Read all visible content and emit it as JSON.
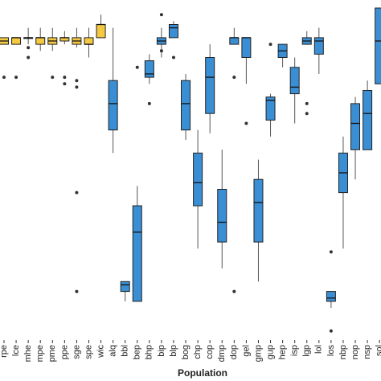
{
  "chart_data": {
    "type": "box",
    "x_label": "Population",
    "categories": [
      "rpe",
      "lce",
      "mhe",
      "mpe",
      "pme",
      "ppe",
      "sge",
      "spe",
      "wic",
      "alq",
      "bbl",
      "bep",
      "bhp",
      "bip",
      "blp",
      "bog",
      "chp",
      "cop",
      "dmp",
      "dop",
      "gel",
      "gmp",
      "gup",
      "hep",
      "isp",
      "lgp",
      "lol",
      "los",
      "nbp",
      "nop",
      "nsp",
      "sol"
    ],
    "colors": [
      "#f5c842",
      "#f5c842",
      "#f5c842",
      "#f5c842",
      "#f5c842",
      "#f5c842",
      "#f5c842",
      "#f5c842",
      "#f5c842",
      "#3a8fd4",
      "#3a8fd4",
      "#3a8fd4",
      "#3a8fd4",
      "#3a8fd4",
      "#3a8fd4",
      "#3a8fd4",
      "#3a8fd4",
      "#3a8fd4",
      "#3a8fd4",
      "#3a8fd4",
      "#3a8fd4",
      "#3a8fd4",
      "#3a8fd4",
      "#3a8fd4",
      "#3a8fd4",
      "#3a8fd4",
      "#3a8fd4",
      "#3a8fd4",
      "#3a8fd4",
      "#3a8fd4",
      "#3a8fd4",
      "#3a8fd4"
    ],
    "ylim": [
      0,
      100
    ],
    "boxes": [
      {
        "min": 89,
        "q1": 89,
        "median": 90,
        "q3": 91,
        "max": 91,
        "outliers": [
          79
        ]
      },
      {
        "min": 89,
        "q1": 89,
        "median": 91,
        "q3": 91,
        "max": 91,
        "outliers": [
          79
        ]
      },
      {
        "min": 89,
        "q1": 91,
        "median": 91,
        "q3": 91,
        "max": 94,
        "outliers": [
          88,
          85
        ]
      },
      {
        "min": 87,
        "q1": 89,
        "median": 91,
        "q3": 91,
        "max": 94,
        "outliers": []
      },
      {
        "min": 87,
        "q1": 89,
        "median": 90,
        "q3": 91,
        "max": 94,
        "outliers": [
          79
        ]
      },
      {
        "min": 89,
        "q1": 90,
        "median": 91,
        "q3": 91,
        "max": 93,
        "outliers": [
          79,
          77
        ]
      },
      {
        "min": 88,
        "q1": 89,
        "median": 90,
        "q3": 91,
        "max": 94,
        "outliers": [
          78,
          76,
          44,
          14
        ]
      },
      {
        "min": 85,
        "q1": 89,
        "median": 89,
        "q3": 91,
        "max": 94,
        "outliers": []
      },
      {
        "min": 91,
        "q1": 91,
        "median": 95,
        "q3": 95,
        "max": 98,
        "outliers": []
      },
      {
        "min": 56,
        "q1": 63,
        "median": 71,
        "q3": 78,
        "max": 94,
        "outliers": []
      },
      {
        "min": 11,
        "q1": 14,
        "median": 16,
        "q3": 17,
        "max": 17,
        "outliers": []
      },
      {
        "min": 11,
        "q1": 11,
        "median": 32,
        "q3": 40,
        "max": 46,
        "outliers": [
          82
        ]
      },
      {
        "min": 77,
        "q1": 79,
        "median": 80,
        "q3": 84,
        "max": 86,
        "outliers": [
          71
        ]
      },
      {
        "min": 85,
        "q1": 89,
        "median": 90,
        "q3": 91,
        "max": 94,
        "outliers": [
          98,
          87
        ]
      },
      {
        "min": 91,
        "q1": 91,
        "median": 94,
        "q3": 95,
        "max": 96,
        "outliers": [
          85
        ]
      },
      {
        "min": 60,
        "q1": 63,
        "median": 71,
        "q3": 78,
        "max": 80,
        "outliers": []
      },
      {
        "min": 27,
        "q1": 40,
        "median": 47,
        "q3": 56,
        "max": 63,
        "outliers": []
      },
      {
        "min": 62,
        "q1": 68,
        "median": 79,
        "q3": 85,
        "max": 89,
        "outliers": []
      },
      {
        "min": 21,
        "q1": 29,
        "median": 35,
        "q3": 45,
        "max": 57,
        "outliers": []
      },
      {
        "min": 89,
        "q1": 89,
        "median": 91,
        "q3": 91,
        "max": 94,
        "outliers": [
          79,
          14
        ]
      },
      {
        "min": 77,
        "q1": 85,
        "median": 91,
        "q3": 91,
        "max": 91,
        "outliers": [
          65
        ]
      },
      {
        "min": 17,
        "q1": 29,
        "median": 41,
        "q3": 48,
        "max": 54,
        "outliers": []
      },
      {
        "min": 61,
        "q1": 66,
        "median": 72,
        "q3": 73,
        "max": 74,
        "outliers": [
          89
        ]
      },
      {
        "min": 82,
        "q1": 85,
        "median": 87,
        "q3": 89,
        "max": 89,
        "outliers": []
      },
      {
        "min": 65,
        "q1": 74,
        "median": 76,
        "q3": 82,
        "max": 85,
        "outliers": []
      },
      {
        "min": 89,
        "q1": 89,
        "median": 90,
        "q3": 91,
        "max": 93,
        "outliers": [
          71,
          68
        ]
      },
      {
        "min": 80,
        "q1": 86,
        "median": 90,
        "q3": 91,
        "max": 94,
        "outliers": []
      },
      {
        "min": 9,
        "q1": 11,
        "median": 12,
        "q3": 14,
        "max": 14,
        "outliers": [
          26,
          2
        ]
      },
      {
        "min": 27,
        "q1": 44,
        "median": 50,
        "q3": 56,
        "max": 61,
        "outliers": []
      },
      {
        "min": 48,
        "q1": 57,
        "median": 65,
        "q3": 71,
        "max": 73,
        "outliers": []
      },
      {
        "min": 57,
        "q1": 57,
        "median": 68,
        "q3": 75,
        "max": 78,
        "outliers": []
      },
      {
        "min": 77,
        "q1": 77,
        "median": 90,
        "q3": 100,
        "max": 100,
        "outliers": []
      }
    ]
  }
}
